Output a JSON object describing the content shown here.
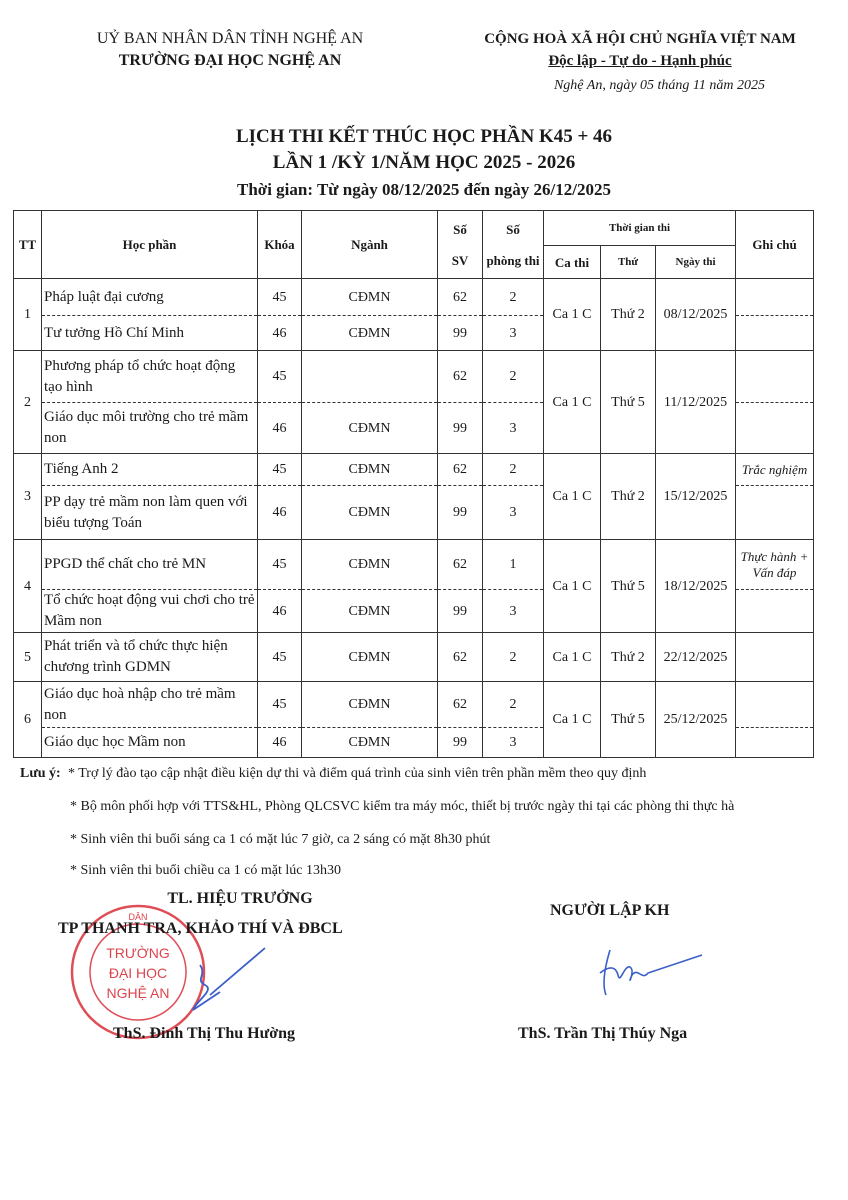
{
  "header_left": {
    "line1": "UỶ BAN NHÂN DÂN TỈNH  NGHỆ AN",
    "line2": "TRƯỜNG ĐẠI HỌC NGHỆ AN"
  },
  "header_right": {
    "line1": "CỘNG HOÀ XÃ HỘI CHỦ NGHĨA VIỆT NAM",
    "line2": "Độc lập - Tự do - Hạnh phúc"
  },
  "date_line": "Nghệ An, ngày 05 tháng 11 năm 2025",
  "title": {
    "line1": "LỊCH THI KẾT THÚC HỌC PHẦN K45 + 46",
    "line2": "LẦN 1 /KỲ 1/NĂM HỌC 2025 - 2026",
    "period": "Thời gian: Từ ngày 08/12/2025 đến ngày 26/12/2025"
  },
  "table": {
    "headers": {
      "tt": "TT",
      "hoc_phan": "Học phần",
      "khoa": "Khóa",
      "nganh": "Ngành",
      "so_sv_1": "Số",
      "so_sv_2": "SV",
      "so_phong_1": "Số",
      "so_phong_2": "phòng thi",
      "thoi_gian": "Thời gian thi",
      "ca_thi": "Ca thi",
      "thu": "Thứ",
      "ngay_thi": "Ngày thi",
      "ghi_chu": "Ghi chú"
    },
    "groups": [
      {
        "tt": "1",
        "ca": "Ca 1 C",
        "thu": "Thứ 2",
        "ngay": "08/12/2025",
        "rows": [
          {
            "hoc_phan": "Pháp luật đại cương",
            "khoa": "45",
            "nganh": "CĐMN",
            "sv": "62",
            "phong": "2",
            "ghi_chu": ""
          },
          {
            "hoc_phan": "Tư tưởng Hồ Chí Minh",
            "khoa": "46",
            "nganh": "CĐMN",
            "sv": "99",
            "phong": "3",
            "ghi_chu": ""
          }
        ]
      },
      {
        "tt": "2",
        "ca": "Ca 1 C",
        "thu": "Thứ 5",
        "ngay": "11/12/2025",
        "rows": [
          {
            "hoc_phan": "Phương pháp tổ chức hoạt động tạo hình",
            "khoa": "45",
            "nganh": "",
            "sv": "62",
            "phong": "2",
            "ghi_chu": ""
          },
          {
            "hoc_phan": "Giáo dục môi trường cho trẻ mầm non",
            "khoa": "46",
            "nganh": "CĐMN",
            "sv": "99",
            "phong": "3",
            "ghi_chu": ""
          }
        ]
      },
      {
        "tt": "3",
        "ca": "Ca 1 C",
        "thu": "Thứ 2",
        "ngay": "15/12/2025",
        "rows": [
          {
            "hoc_phan": "Tiếng Anh 2",
            "khoa": "45",
            "nganh": "CĐMN",
            "sv": "62",
            "phong": "2",
            "ghi_chu": "Trắc nghiệm"
          },
          {
            "hoc_phan": "PP  dạy trẻ mầm non  làm quen với biểu tượng Toán",
            "khoa": "46",
            "nganh": "CĐMN",
            "sv": "99",
            "phong": "3",
            "ghi_chu": ""
          }
        ]
      },
      {
        "tt": "4",
        "ca": "Ca 1 C",
        "thu": "Thứ 5",
        "ngay": "18/12/2025",
        "rows": [
          {
            "hoc_phan": "PPGD thể chất cho trẻ MN",
            "khoa": "45",
            "nganh": "CĐMN",
            "sv": "62",
            "phong": "1",
            "ghi_chu": "Thực hành + Vấn đáp"
          },
          {
            "hoc_phan": "Tổ chức hoạt động vui chơi cho trẻ Mầm non",
            "khoa": "46",
            "nganh": "CĐMN",
            "sv": "99",
            "phong": "3",
            "ghi_chu": ""
          }
        ]
      },
      {
        "tt": "5",
        "ca": "Ca 1 C",
        "thu": "Thứ 2",
        "ngay": "22/12/2025",
        "rows": [
          {
            "hoc_phan": "Phát triển và tổ chức thực hiện chương trình GDMN",
            "khoa": "45",
            "nganh": "CĐMN",
            "sv": "62",
            "phong": "2",
            "ghi_chu": ""
          }
        ]
      },
      {
        "tt": "6",
        "ca": "Ca 1 C",
        "thu": "Thứ 5",
        "ngay": "25/12/2025",
        "rows": [
          {
            "hoc_phan": "Giáo dục hoà nhập cho trẻ mầm non",
            "khoa": "45",
            "nganh": "CĐMN",
            "sv": "62",
            "phong": "2",
            "ghi_chu": ""
          },
          {
            "hoc_phan": "Giáo dục học Mầm non",
            "khoa": "46",
            "nganh": "CĐMN",
            "sv": "99",
            "phong": "3",
            "ghi_chu": ""
          }
        ]
      }
    ]
  },
  "notes": {
    "label": "Lưu ý:",
    "items": [
      "* Trợ lý đào tạo cập nhật điều kiện dự thi và điểm quá trình của sinh viên trên phần mềm theo quy định",
      "* Bộ môn phối hợp với TTS&HL, Phòng QLCSVC kiểm tra máy móc, thiết bị trước ngày thi tại các phòng thi thực hà",
      "* Sinh viên thi  buổi sáng ca 1 có mặt lúc 7 giờ, ca 2 sáng có mặt 8h30 phút",
      "* Sinh viên thi buổi chiều ca 1 có mặt lúc 13h30"
    ]
  },
  "signatures": {
    "left": {
      "line1": "TL. HIỆU TRƯỞNG",
      "line2": "TP THANH TRA, KHẢO THÍ VÀ ĐBCL",
      "name": "ThS. Đinh Thị Thu Hường"
    },
    "right": {
      "title": "NGƯỜI LẬP KH",
      "name": "ThS. Trần Thị Thúy Nga"
    }
  },
  "stamp": {
    "text": "TRƯỜNG ĐẠI HỌC NGHỆ AN",
    "ring_text": "UỶ BAN NHÂN DÂN TỈNH NGHỆ AN",
    "color": "#d9303a"
  },
  "signature_ink_color": "#3a5fc8"
}
